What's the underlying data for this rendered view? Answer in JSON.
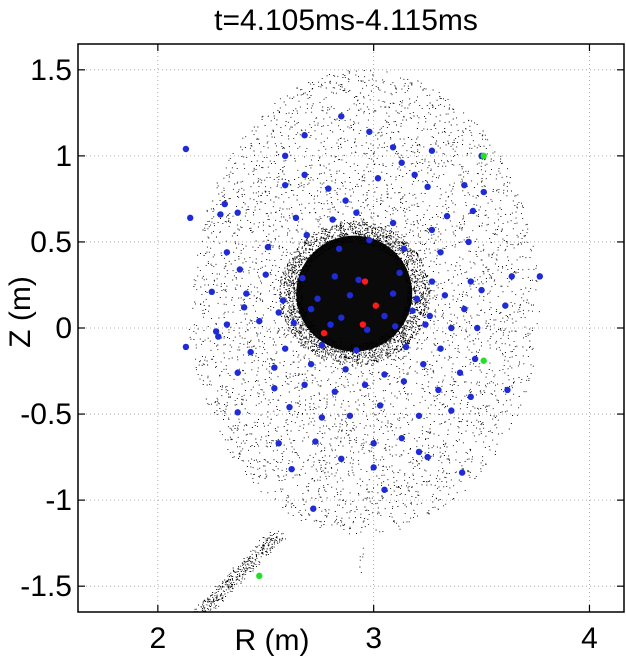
{
  "chart_data": {
    "type": "scatter",
    "title": "t=4.105ms-4.115ms",
    "xlabel": "R (m)",
    "ylabel": "Z (m)",
    "xlim": [
      1.63,
      4.16
    ],
    "ylim": [
      -1.65,
      1.65
    ],
    "xticks": [
      2,
      3,
      4
    ],
    "xtick_labels": [
      "2",
      "3",
      "4"
    ],
    "yticks": [
      -1.5,
      -1,
      -0.5,
      0,
      0.5,
      1,
      1.5
    ],
    "ytick_labels": [
      "-1.5",
      "-1",
      "-0.5",
      "0",
      "0.5",
      "1",
      "1.5"
    ],
    "grid": true,
    "legend": "none",
    "series": [
      {
        "color": "#000000",
        "marker": "dot-cloud",
        "description_points": "dense field of tracer particles filling the plasma cross-section, with a dense core near R=2.9 m, Z=0.2 m"
      },
      {
        "color": "#1f2bd6",
        "points": [
          [
            2.13,
            1.04
          ],
          [
            2.59,
            1.0
          ],
          [
            2.68,
            1.12
          ],
          [
            2.85,
            1.23
          ],
          [
            2.98,
            1.14
          ],
          [
            3.09,
            1.05
          ],
          [
            3.13,
            0.96
          ],
          [
            3.27,
            1.03
          ],
          [
            3.5,
            1.0
          ],
          [
            2.59,
            0.83
          ],
          [
            2.68,
            0.89
          ],
          [
            2.79,
            0.81
          ],
          [
            2.87,
            0.74
          ],
          [
            3.02,
            0.87
          ],
          [
            3.19,
            0.89
          ],
          [
            3.25,
            0.82
          ],
          [
            3.42,
            0.83
          ],
          [
            3.51,
            0.79
          ],
          [
            2.15,
            0.64
          ],
          [
            2.29,
            0.66
          ],
          [
            2.31,
            0.72
          ],
          [
            2.37,
            0.67
          ],
          [
            2.64,
            0.64
          ],
          [
            2.81,
            0.63
          ],
          [
            2.92,
            0.67
          ],
          [
            3.09,
            0.61
          ],
          [
            3.27,
            0.57
          ],
          [
            3.34,
            0.65
          ],
          [
            3.46,
            0.68
          ],
          [
            2.32,
            0.44
          ],
          [
            2.51,
            0.47
          ],
          [
            2.69,
            0.54
          ],
          [
            2.84,
            0.46
          ],
          [
            2.98,
            0.51
          ],
          [
            3.14,
            0.46
          ],
          [
            3.31,
            0.44
          ],
          [
            3.44,
            0.5
          ],
          [
            2.38,
            0.34
          ],
          [
            2.5,
            0.31
          ],
          [
            2.67,
            0.29
          ],
          [
            2.82,
            0.3
          ],
          [
            2.93,
            0.28
          ],
          [
            3.12,
            0.32
          ],
          [
            3.27,
            0.27
          ],
          [
            3.45,
            0.27
          ],
          [
            3.64,
            0.3
          ],
          [
            3.77,
            0.3
          ],
          [
            2.25,
            0.21
          ],
          [
            2.41,
            0.2
          ],
          [
            2.58,
            0.16
          ],
          [
            2.74,
            0.17
          ],
          [
            2.89,
            0.19
          ],
          [
            3.09,
            0.2
          ],
          [
            3.2,
            0.17
          ],
          [
            3.33,
            0.19
          ],
          [
            3.5,
            0.22
          ],
          [
            3.61,
            0.13
          ],
          [
            2.4,
            0.12
          ],
          [
            2.56,
            0.09
          ],
          [
            2.71,
            0.11
          ],
          [
            2.85,
            0.06
          ],
          [
            3.05,
            0.07
          ],
          [
            3.18,
            0.1
          ],
          [
            3.26,
            0.07
          ],
          [
            3.42,
            0.11
          ],
          [
            2.27,
            -0.02
          ],
          [
            2.32,
            0.02
          ],
          [
            2.47,
            0.04
          ],
          [
            2.63,
            0.03
          ],
          [
            2.8,
            0.02
          ],
          [
            2.97,
            -0.01
          ],
          [
            3.1,
            0.01
          ],
          [
            3.24,
            0.02
          ],
          [
            3.36,
            0.0
          ],
          [
            3.48,
            0.0
          ],
          [
            2.13,
            -0.11
          ],
          [
            2.28,
            -0.05
          ],
          [
            2.43,
            -0.14
          ],
          [
            2.59,
            -0.12
          ],
          [
            2.76,
            -0.1
          ],
          [
            2.92,
            -0.13
          ],
          [
            3.15,
            -0.11
          ],
          [
            3.31,
            -0.12
          ],
          [
            3.47,
            -0.18
          ],
          [
            2.37,
            -0.26
          ],
          [
            2.54,
            -0.23
          ],
          [
            2.71,
            -0.21
          ],
          [
            2.87,
            -0.24
          ],
          [
            3.05,
            -0.27
          ],
          [
            3.23,
            -0.21
          ],
          [
            3.4,
            -0.26
          ],
          [
            2.54,
            -0.35
          ],
          [
            2.68,
            -0.33
          ],
          [
            2.82,
            -0.37
          ],
          [
            2.96,
            -0.33
          ],
          [
            3.14,
            -0.31
          ],
          [
            3.3,
            -0.36
          ],
          [
            3.45,
            -0.4
          ],
          [
            3.62,
            -0.36
          ],
          [
            2.37,
            -0.49
          ],
          [
            2.61,
            -0.46
          ],
          [
            2.76,
            -0.52
          ],
          [
            2.89,
            -0.51
          ],
          [
            3.03,
            -0.45
          ],
          [
            3.21,
            -0.51
          ],
          [
            3.36,
            -0.48
          ],
          [
            2.56,
            -0.67
          ],
          [
            2.73,
            -0.66
          ],
          [
            3.0,
            -0.67
          ],
          [
            3.13,
            -0.64
          ],
          [
            3.21,
            -0.72
          ],
          [
            2.62,
            -0.82
          ],
          [
            2.85,
            -0.76
          ],
          [
            3.0,
            -0.81
          ],
          [
            3.25,
            -0.75
          ],
          [
            3.41,
            -0.84
          ],
          [
            3.05,
            -0.94
          ],
          [
            2.72,
            -1.05
          ]
        ]
      },
      {
        "color": "#ff1a1a",
        "points": [
          [
            2.96,
            0.27
          ],
          [
            3.01,
            0.13
          ],
          [
            2.95,
            0.02
          ],
          [
            2.77,
            -0.03
          ]
        ]
      },
      {
        "color": "#22e022",
        "points": [
          [
            3.51,
            1.0
          ],
          [
            3.51,
            -0.19
          ],
          [
            2.47,
            -1.44
          ]
        ]
      }
    ],
    "annotations": []
  }
}
